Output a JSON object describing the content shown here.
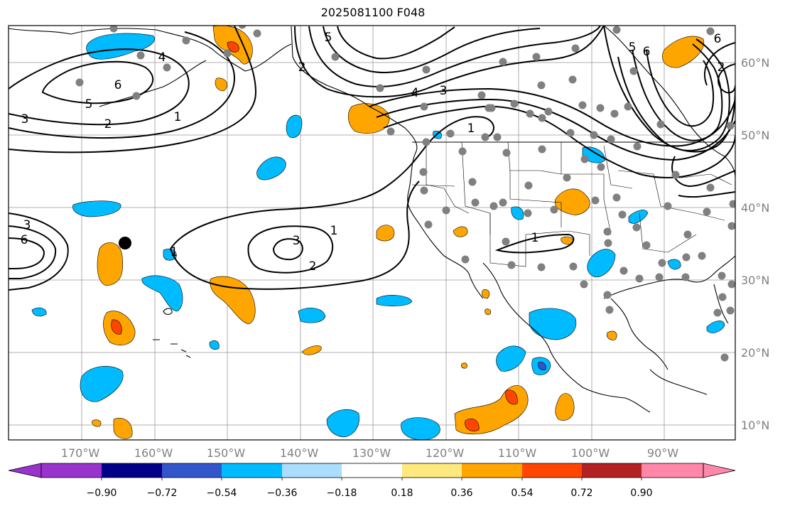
{
  "title": "2025081100 F048",
  "map": {
    "lon_ticks": [
      "170°W",
      "160°W",
      "150°W",
      "140°W",
      "130°W",
      "120°W",
      "110°W",
      "100°W",
      "90°W"
    ],
    "lat_ticks": [
      "60°N",
      "50°N",
      "40°N",
      "30°N",
      "20°N",
      "10°N"
    ],
    "contour_labels": [
      "1",
      "1",
      "1",
      "1",
      "2",
      "2",
      "2",
      "2",
      "3",
      "3",
      "3",
      "3",
      "4",
      "4",
      "5",
      "5",
      "5",
      "6",
      "6",
      "6",
      "6",
      "1"
    ],
    "station_color": "#808080",
    "marker_color": "#000000"
  },
  "colorbar": {
    "ticks": [
      "−0.90",
      "−0.72",
      "−0.54",
      "−0.36",
      "−0.18",
      "0.18",
      "0.36",
      "0.54",
      "0.72",
      "0.90"
    ],
    "colors": [
      "#9933cc",
      "#000088",
      "#3355cc",
      "#00bbff",
      "#aaddff",
      "#ffffff",
      "#ffe97f",
      "#ffa500",
      "#ff4500",
      "#b22222",
      "#ff88aa"
    ]
  }
}
